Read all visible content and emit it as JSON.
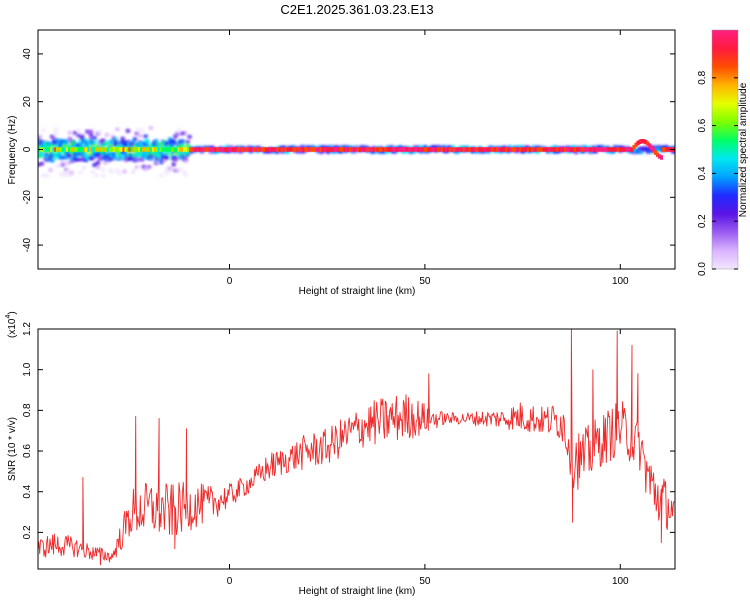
{
  "figure": {
    "title": "C2E1.2025.361.03.23.E13"
  },
  "colors": {
    "snr_line": "#ee2a2a",
    "colormap": [
      "#f2e6ff",
      "#d9b3ff",
      "#9a5cf0",
      "#5a14e6",
      "#1f2bff",
      "#00a2ff",
      "#00e8f0",
      "#00ff66",
      "#7dff00",
      "#e6ff00",
      "#ffb300",
      "#ff4d00",
      "#ff1a40",
      "#ff2080"
    ]
  },
  "chart_data": [
    {
      "type": "heatmap",
      "name": "spectrogram",
      "title": "C2E1.2025.361.03.23.E13",
      "xlabel": "Height of straight line (km)",
      "ylabel": "Frequency (Hz)",
      "xlim": [
        -49,
        114
      ],
      "ylim": [
        -50,
        50
      ],
      "xticks": [
        0,
        50,
        100
      ],
      "yticks": [
        -40,
        -20,
        0,
        20,
        40
      ],
      "colorbar": {
        "label": "Normalized spectral amplitude",
        "range": [
          0,
          1
        ],
        "ticks": [
          0.0,
          0.2,
          0.4,
          0.6,
          0.8
        ]
      },
      "ridge": {
        "frequency_hz": 0,
        "description": "energy concentrated near 0 Hz across the full height range; broad scatter (about +5 to -12 Hz) below about -10 km, narrow high-amplitude band above",
        "spread_region": [
          -49,
          -10
        ],
        "spread_hz": [
          -12,
          6
        ]
      }
    },
    {
      "type": "line",
      "name": "snr",
      "xlabel": "Height of straight line (km)",
      "ylabel": "SNR (10 * v/v)",
      "scale_label": "(x10",
      "scale_exponent": "4",
      "xlim": [
        -49,
        114
      ],
      "ylim": [
        0.02,
        1.2
      ],
      "xticks": [
        0,
        50,
        100
      ],
      "yticks": [
        0.2,
        0.4,
        0.6,
        0.8,
        1.0,
        1.2
      ],
      "ytick_labels": [
        "0.2",
        "0.4",
        "0.6",
        "0.8",
        "1.0",
        "1.2"
      ],
      "series": [
        {
          "trend_x": [
            -49,
            -45,
            -40,
            -35,
            -30,
            -25,
            -20,
            -15,
            -10,
            -5,
            0,
            5,
            10,
            15,
            20,
            25,
            30,
            35,
            40,
            45,
            50,
            55,
            60,
            65,
            70,
            75,
            80,
            85,
            88,
            90,
            95,
            100,
            105,
            108,
            111,
            114
          ],
          "trend_y": [
            0.12,
            0.14,
            0.13,
            0.1,
            0.08,
            0.3,
            0.32,
            0.3,
            0.33,
            0.34,
            0.38,
            0.44,
            0.52,
            0.56,
            0.6,
            0.62,
            0.68,
            0.73,
            0.75,
            0.77,
            0.76,
            0.76,
            0.76,
            0.76,
            0.76,
            0.77,
            0.75,
            0.75,
            0.6,
            0.55,
            0.65,
            0.72,
            0.62,
            0.42,
            0.35,
            0.3
          ],
          "noise_amplitude": [
            0.05,
            0.06,
            0.05,
            0.04,
            0.03,
            0.12,
            0.14,
            0.14,
            0.12,
            0.09,
            0.06,
            0.05,
            0.07,
            0.07,
            0.09,
            0.09,
            0.1,
            0.11,
            0.12,
            0.12,
            0.08,
            0.03,
            0.03,
            0.04,
            0.05,
            0.08,
            0.07,
            0.1,
            0.18,
            0.15,
            0.13,
            0.14,
            0.12,
            0.16,
            0.14,
            0.08
          ],
          "peaks": [
            {
              "x": 87.5,
              "y": 1.2
            },
            {
              "x": 87.8,
              "y": 0.25
            },
            {
              "x": 99.2,
              "y": 1.19
            },
            {
              "x": 93.0,
              "y": 1.0
            },
            {
              "x": 103.0,
              "y": 1.12
            },
            {
              "x": 104.5,
              "y": 0.98
            },
            {
              "x": 110.5,
              "y": 0.15
            },
            {
              "x": 51.0,
              "y": 0.98
            },
            {
              "x": -37.5,
              "y": 0.47
            },
            {
              "x": -24.0,
              "y": 0.77
            },
            {
              "x": -18.0,
              "y": 0.76
            },
            {
              "x": -11.0,
              "y": 0.71
            },
            {
              "x": -14.0,
              "y": 0.12
            },
            {
              "x": -33.0,
              "y": 0.04
            }
          ]
        }
      ]
    }
  ]
}
